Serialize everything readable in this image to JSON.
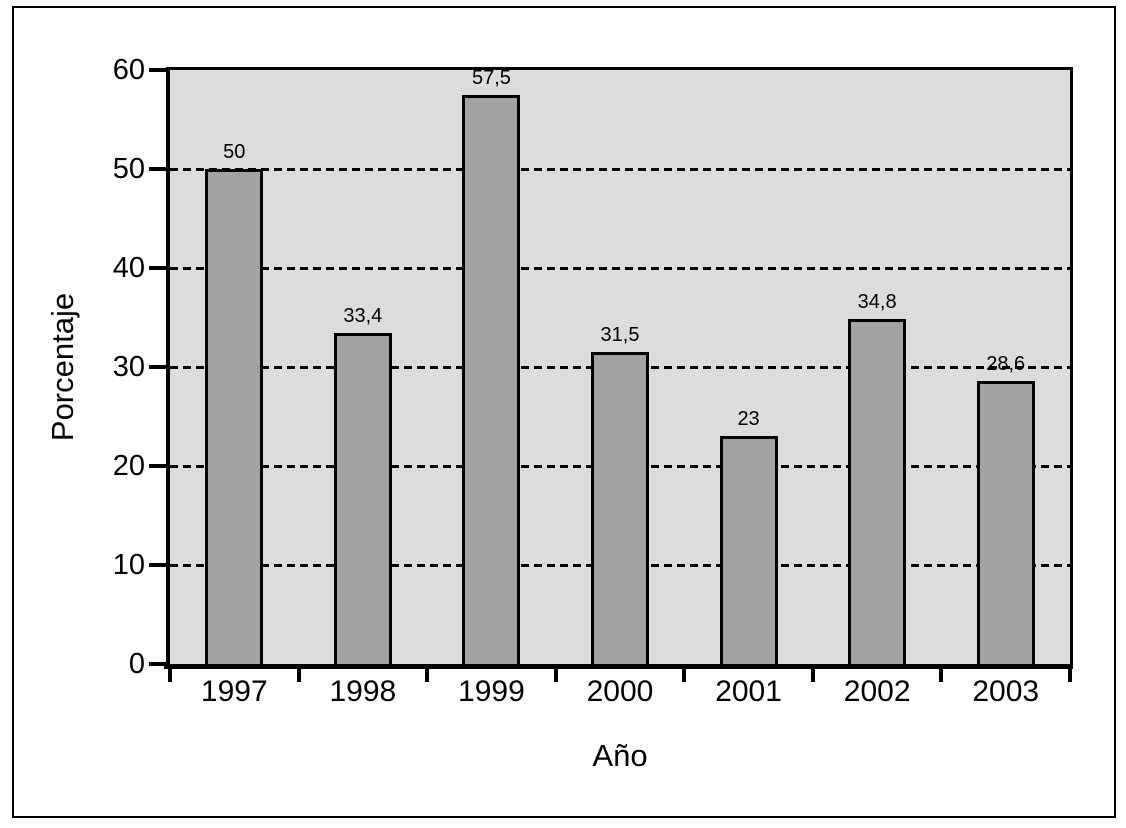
{
  "figure": {
    "background": "#ffffff",
    "frame_border_color": "#000000"
  },
  "chart_data": {
    "type": "bar",
    "title": "",
    "xlabel": "Año",
    "ylabel": "Porcentaje",
    "categories": [
      "1997",
      "1998",
      "1999",
      "2000",
      "2001",
      "2002",
      "2003"
    ],
    "values": [
      50,
      33.4,
      57.5,
      31.5,
      23,
      34.8,
      28.6
    ],
    "value_labels": [
      "50",
      "33,4",
      "57,5",
      "31,5",
      "23",
      "34,8",
      "28,6"
    ],
    "series_name": "Porcentaje",
    "ylim": [
      0,
      60
    ],
    "yticks": [
      0,
      10,
      20,
      30,
      40,
      50,
      60
    ],
    "grid": {
      "horizontal": true,
      "style": "dashed",
      "at": [
        10,
        20,
        30,
        40,
        50
      ]
    },
    "legend": "none",
    "decimal_separator": ",",
    "colors": {
      "bar_fill": "#a2a2a2",
      "bar_border": "#000000",
      "plot_background": "#dcdcdc",
      "axis": "#000000",
      "text": "#000000"
    }
  }
}
